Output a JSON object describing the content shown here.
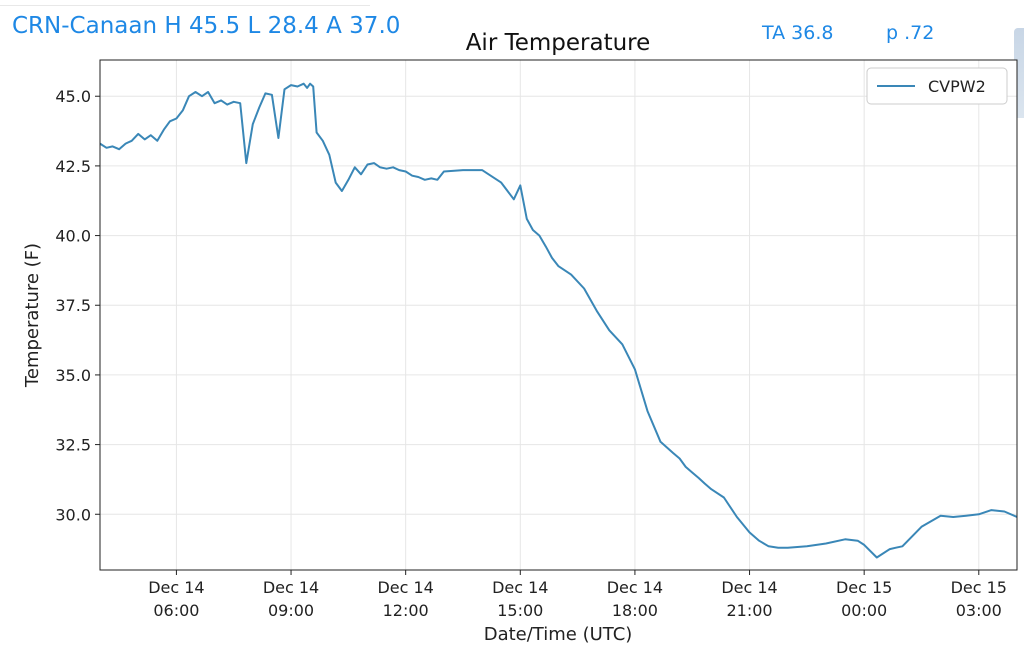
{
  "header": {
    "station_summary": "CRN-Canaan H 45.5 L 28.4 A 37.0",
    "ta": "TA 36.8",
    "p": "p .72"
  },
  "colors": {
    "header_text": "#1e88e5",
    "series_line": "#3a87b7",
    "grid": "#e6e6e6"
  },
  "chart_data": {
    "type": "line",
    "title": "Air Temperature",
    "xlabel": "Date/Time (UTC)",
    "ylabel": "Temperature (F)",
    "grid": true,
    "legend_position": "top-right",
    "xlim": [
      4.0,
      28.0
    ],
    "ylim": [
      28.0,
      46.3
    ],
    "x_unit": "hours after Dec 14 00:00 UTC",
    "yticks": [
      30.0,
      32.5,
      35.0,
      37.5,
      40.0,
      42.5,
      45.0
    ],
    "ytick_labels": [
      "30.0",
      "32.5",
      "35.0",
      "37.5",
      "40.0",
      "42.5",
      "45.0"
    ],
    "xticks": [
      6,
      9,
      12,
      15,
      18,
      21,
      24,
      27
    ],
    "xtick_labels": [
      [
        "Dec 14",
        "06:00"
      ],
      [
        "Dec 14",
        "09:00"
      ],
      [
        "Dec 14",
        "12:00"
      ],
      [
        "Dec 14",
        "15:00"
      ],
      [
        "Dec 14",
        "18:00"
      ],
      [
        "Dec 14",
        "21:00"
      ],
      [
        "Dec 15",
        "00:00"
      ],
      [
        "Dec 15",
        "03:00"
      ]
    ],
    "series": [
      {
        "name": "CVPW2",
        "x": [
          4.0,
          4.17,
          4.33,
          4.5,
          4.67,
          4.83,
          5.0,
          5.17,
          5.33,
          5.5,
          5.67,
          5.83,
          6.0,
          6.17,
          6.33,
          6.5,
          6.67,
          6.83,
          7.0,
          7.17,
          7.33,
          7.5,
          7.67,
          7.83,
          8.0,
          8.17,
          8.33,
          8.5,
          8.67,
          8.83,
          9.0,
          9.17,
          9.33,
          9.42,
          9.5,
          9.58,
          9.67,
          9.83,
          10.0,
          10.17,
          10.33,
          10.5,
          10.67,
          10.83,
          11.0,
          11.17,
          11.33,
          11.5,
          11.67,
          11.83,
          12.0,
          12.17,
          12.33,
          12.5,
          12.67,
          12.83,
          13.0,
          13.5,
          14.0,
          14.5,
          14.83,
          15.0,
          15.17,
          15.33,
          15.5,
          15.67,
          15.83,
          16.0,
          16.33,
          16.67,
          17.0,
          17.33,
          17.67,
          18.0,
          18.33,
          18.67,
          19.0,
          19.17,
          19.33,
          19.5,
          19.67,
          19.83,
          20.0,
          20.33,
          20.67,
          21.0,
          21.25,
          21.5,
          21.75,
          22.0,
          22.5,
          23.0,
          23.5,
          23.83,
          24.0,
          24.33,
          24.67,
          24.83,
          25.0,
          25.5,
          26.0,
          26.33,
          26.67,
          27.0,
          27.33,
          27.67,
          28.0
        ],
        "values": [
          43.3,
          43.15,
          43.2,
          43.1,
          43.3,
          43.4,
          43.65,
          43.45,
          43.6,
          43.4,
          43.8,
          44.1,
          44.2,
          44.5,
          45.0,
          45.15,
          45.0,
          45.15,
          44.75,
          44.85,
          44.7,
          44.8,
          44.75,
          42.6,
          44.0,
          44.6,
          45.1,
          45.05,
          43.5,
          45.25,
          45.4,
          45.35,
          45.45,
          45.3,
          45.45,
          45.35,
          43.7,
          43.4,
          42.9,
          41.9,
          41.6,
          42.0,
          42.45,
          42.2,
          42.55,
          42.6,
          42.45,
          42.4,
          42.45,
          42.35,
          42.3,
          42.15,
          42.1,
          42.0,
          42.05,
          42.0,
          42.3,
          42.35,
          42.35,
          41.9,
          41.3,
          41.8,
          40.6,
          40.2,
          40.0,
          39.6,
          39.2,
          38.9,
          38.6,
          38.1,
          37.3,
          36.6,
          36.1,
          35.2,
          33.7,
          32.6,
          32.2,
          32.0,
          31.7,
          31.5,
          31.3,
          31.1,
          30.9,
          30.6,
          29.9,
          29.35,
          29.05,
          28.85,
          28.8,
          28.8,
          28.85,
          28.95,
          29.1,
          29.05,
          28.9,
          28.45,
          28.75,
          28.8,
          28.85,
          29.55,
          29.95,
          29.9,
          29.95,
          30.0,
          30.15,
          30.1,
          29.9
        ]
      }
    ]
  }
}
